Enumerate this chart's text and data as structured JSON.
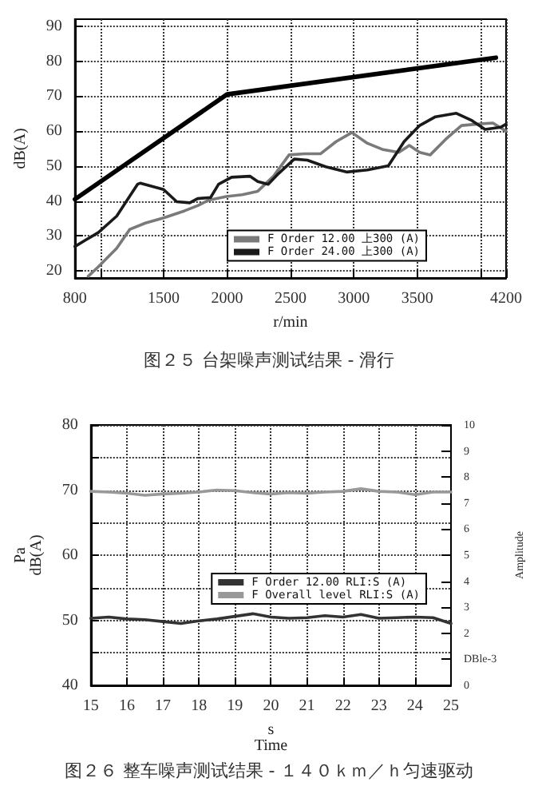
{
  "chart_data": [
    {
      "type": "line",
      "title": "图２５ 台架噪声测试结果 - 滑行",
      "xlabel": "r/min",
      "ylabel": "dB(A)",
      "x": [
        800,
        2000,
        4120
      ],
      "xlim": [
        800,
        4200
      ],
      "xticks": [
        800,
        {
          "value": 1000,
          "label": null
        },
        1500,
        2000,
        2500,
        3000,
        3500,
        {
          "value": 4000,
          "label": null
        },
        4200
      ],
      "ylim": [
        18,
        92
      ],
      "yticks": [
        20,
        30,
        40,
        50,
        60,
        70,
        80,
        90
      ],
      "grid": true,
      "legend": "bottom right",
      "marker": "none",
      "line_style": "solid",
      "series": [
        {
          "color": "#000000",
          "values": [
            40.5,
            70.5,
            81
          ]
        },
        {
          "name": "F Order 12.00 上300 (A)",
          "color": "#7a7a7a",
          "x": [
            905,
            985,
            1130,
            1233,
            1356,
            1500,
            1665,
            1770,
            1850,
            1995,
            2120,
            2242,
            2366,
            2489,
            2610,
            2736,
            2860,
            2984,
            3107,
            3231,
            3354,
            3437,
            3519,
            3602,
            3725,
            3849,
            3972,
            4096,
            4200
          ],
          "values": [
            18.5,
            21.2,
            26.5,
            31.9,
            33.7,
            35.2,
            37.2,
            38.7,
            40.2,
            41.3,
            41.8,
            42.8,
            47.1,
            53.2,
            53.5,
            53.5,
            57,
            59.6,
            56.5,
            54.7,
            53.9,
            55.9,
            53.9,
            53.2,
            57.7,
            61.6,
            62,
            62.3,
            60
          ]
        },
        {
          "name": "F Order 24.00 上300 (A)",
          "color": "#1a1a1a",
          "x": [
            800,
            882,
            985,
            1130,
            1294,
            1315,
            1500,
            1603,
            1706,
            1768,
            1870,
            1933,
            2036,
            2180,
            2242,
            2324,
            2407,
            2530,
            2633,
            2778,
            2942,
            3107,
            3272,
            3396,
            3519,
            3643,
            3808,
            3931,
            4034,
            4158,
            4200
          ],
          "values": [
            27,
            28.8,
            31,
            35.7,
            44.8,
            45.1,
            43.3,
            39.8,
            39.5,
            40.7,
            41,
            44.8,
            46.8,
            47.1,
            45.6,
            44.8,
            47.9,
            52,
            51.7,
            49.8,
            48.3,
            48.9,
            50.1,
            57,
            61.6,
            64.1,
            65.1,
            63,
            60.5,
            61.1,
            62
          ]
        }
      ]
    },
    {
      "type": "line",
      "title": "图２６ 整车噪声测试结果 - １４０ｋｍ／ｈ匀速驱动",
      "xlabel": "s\nTime",
      "ylabel": "Pa\ndB(A)",
      "y2label": "Amplitude",
      "x": [
        15,
        15.5,
        16,
        16.5,
        17,
        17.5,
        18,
        18.5,
        19,
        19.5,
        20,
        20.5,
        21,
        21.5,
        22,
        22.5,
        23,
        23.5,
        24,
        24.5,
        25
      ],
      "xlim": [
        15,
        25
      ],
      "xticks": [
        15,
        16,
        17,
        18,
        19,
        20,
        21,
        22,
        23,
        24,
        25
      ],
      "ylim": [
        40,
        80
      ],
      "yticks": [
        40,
        {
          "value": 45,
          "label": null
        },
        50,
        {
          "value": 55,
          "label": null
        },
        60,
        {
          "value": 65,
          "label": null
        },
        70,
        {
          "value": 75,
          "label": null
        },
        80
      ],
      "y2lim": [
        0,
        10
      ],
      "y2ticks": [
        0,
        {
          "value": 1,
          "label": "DBle-3"
        },
        2,
        3,
        4,
        5,
        6,
        7,
        8,
        9,
        10
      ],
      "grid": true,
      "legend": "right",
      "marker": "none",
      "line_style": "solid",
      "series": [
        {
          "name": "F Order 12.00 RLI:S (A)",
          "color": "#333333",
          "values": [
            50.3,
            50.5,
            50.2,
            50.1,
            49.8,
            49.5,
            49.9,
            50.2,
            50.6,
            51,
            50.5,
            50.3,
            50.4,
            50.7,
            50.5,
            50.9,
            50.3,
            50.4,
            50.5,
            50.4,
            49.5
          ]
        },
        {
          "name": "F Overall level RLI:S (A)",
          "color": "#999999",
          "values": [
            69.8,
            69.7,
            69.5,
            69.2,
            69.4,
            69.5,
            69.7,
            70,
            69.9,
            69.6,
            69.4,
            69.6,
            69.5,
            69.7,
            69.8,
            70.2,
            69.8,
            69.7,
            69.3,
            69.7,
            69.7
          ]
        }
      ]
    }
  ]
}
